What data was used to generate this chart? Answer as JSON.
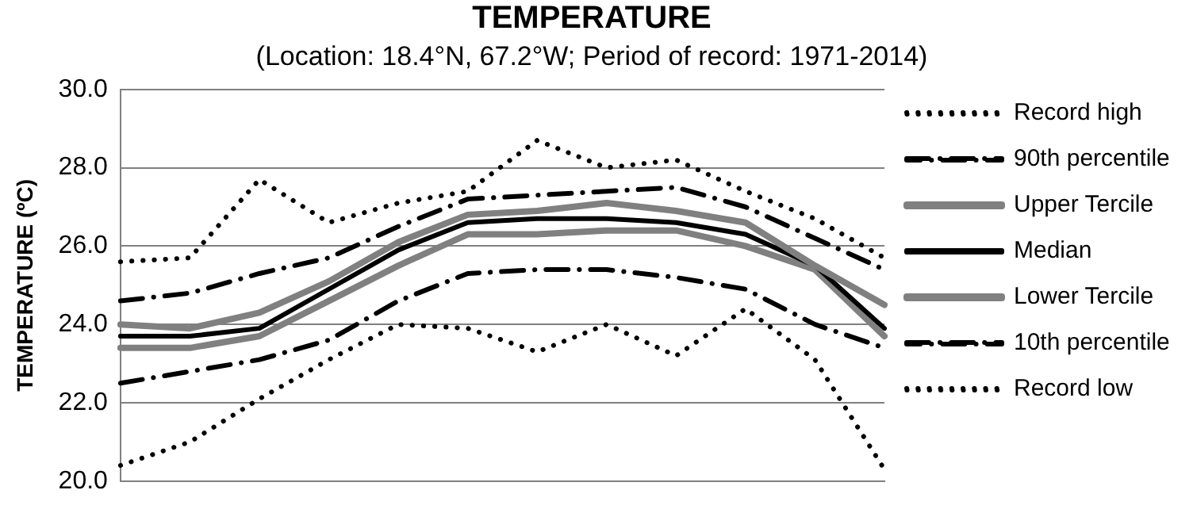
{
  "chart_data": {
    "type": "line",
    "title": "TEMPERATURE",
    "subtitle": "(Location: 18.4°N, 67.2°W; Period of record: 1971-2014)",
    "ylabel": "TEMPERATURE (ºC)",
    "categories": [
      null,
      null,
      null,
      null,
      null,
      null,
      null,
      null,
      null,
      null,
      null,
      null
    ],
    "series": [
      {
        "name": "Record high",
        "color": "#000000",
        "line_style": "dotted",
        "values": [
          25.6,
          25.7,
          27.7,
          26.6,
          27.1,
          27.4,
          28.7,
          28.0,
          28.2,
          27.4,
          26.7,
          25.7
        ]
      },
      {
        "name": "90th percentile",
        "color": "#000000",
        "line_style": "dashdot",
        "values": [
          24.6,
          24.8,
          25.3,
          25.7,
          26.5,
          27.2,
          27.3,
          27.4,
          27.5,
          27.0,
          26.2,
          25.4
        ]
      },
      {
        "name": "Upper Tercile",
        "color": "#808080",
        "line_style": "solid",
        "values": [
          24.0,
          23.9,
          24.3,
          25.1,
          26.1,
          26.8,
          26.9,
          27.1,
          26.9,
          26.6,
          25.5,
          24.5
        ]
      },
      {
        "name": "Median",
        "color": "#000000",
        "line_style": "solid",
        "values": [
          23.7,
          23.7,
          23.9,
          24.9,
          25.9,
          26.6,
          26.7,
          26.7,
          26.6,
          26.3,
          25.5,
          23.9
        ]
      },
      {
        "name": "Lower Tercile",
        "color": "#808080",
        "line_style": "solid",
        "values": [
          23.4,
          23.4,
          23.7,
          24.6,
          25.5,
          26.3,
          26.3,
          26.4,
          26.4,
          26.0,
          25.4,
          23.7
        ]
      },
      {
        "name": "10th percentile",
        "color": "#000000",
        "line_style": "dashdot",
        "values": [
          22.5,
          22.8,
          23.1,
          23.6,
          24.6,
          25.3,
          25.4,
          25.4,
          25.2,
          24.9,
          24.0,
          23.4
        ]
      },
      {
        "name": "Record low",
        "color": "#000000",
        "line_style": "dotted",
        "values": [
          20.4,
          21.0,
          22.1,
          23.1,
          24.0,
          23.9,
          23.3,
          24.0,
          23.2,
          24.4,
          23.1,
          20.3
        ]
      }
    ],
    "ylim": [
      20,
      30
    ],
    "yticks": [
      {
        "value": 20,
        "label": "20.0"
      },
      {
        "value": 22,
        "label": "22.0"
      },
      {
        "value": 24,
        "label": "24.0"
      },
      {
        "value": 26,
        "label": "26.0"
      },
      {
        "value": 28,
        "label": "28.0"
      },
      {
        "value": 30,
        "label": "30.0"
      }
    ],
    "grid": "y",
    "legend": "right",
    "marker": "none",
    "tick_labels": "y"
  }
}
